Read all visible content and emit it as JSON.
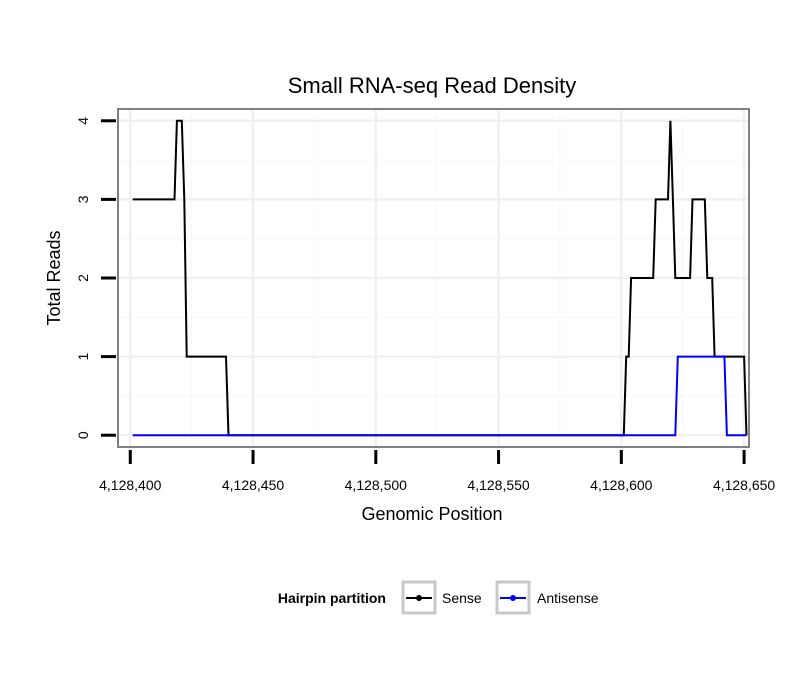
{
  "chart_data": {
    "type": "line",
    "title": "Small RNA-seq Read Density",
    "xlabel": "Genomic Position",
    "ylabel": "Total Reads",
    "xlim": [
      4128395,
      4128652
    ],
    "ylim": [
      -0.15,
      4.15
    ],
    "x_ticks": [
      4128400,
      4128450,
      4128500,
      4128550,
      4128600,
      4128650
    ],
    "x_tick_labels": [
      "4,128,400",
      "4,128,450",
      "4,128,500",
      "4,128,550",
      "4,128,600",
      "4,128,650"
    ],
    "y_ticks": [
      0,
      1,
      2,
      3,
      4
    ],
    "y_tick_labels": [
      "0",
      "1",
      "2",
      "3",
      "4"
    ],
    "grid": true,
    "legend": {
      "title": "Hairpin partition",
      "placement": "bottom",
      "entries": [
        "Sense",
        "Antisense"
      ]
    },
    "series": [
      {
        "name": "Sense",
        "color": "#000000",
        "x": [
          4128401,
          4128418,
          4128419,
          4128421,
          4128422,
          4128423,
          4128424,
          4128439,
          4128440,
          4128601,
          4128602,
          4128603,
          4128604,
          4128613,
          4128614,
          4128619,
          4128620,
          4128621,
          4128622,
          4128623,
          4128628,
          4128629,
          4128630,
          4128634,
          4128635,
          4128637,
          4128638,
          4128650,
          4128651
        ],
        "y": [
          3,
          3,
          4,
          4,
          3,
          1,
          1,
          1,
          0,
          0,
          1,
          1,
          2,
          2,
          3,
          3,
          4,
          3,
          2,
          2,
          2,
          3,
          3,
          3,
          2,
          2,
          1,
          1,
          0
        ]
      },
      {
        "name": "Antisense",
        "color": "#0000ff",
        "x": [
          4128401,
          4128622,
          4128623,
          4128642,
          4128643,
          4128651
        ],
        "y": [
          0,
          0,
          1,
          1,
          0,
          0
        ]
      }
    ]
  }
}
